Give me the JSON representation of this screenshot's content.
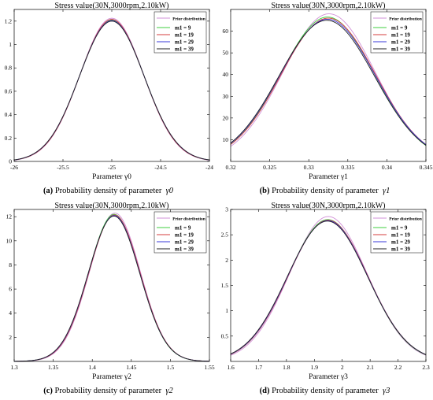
{
  "chart_data": [
    {
      "type": "line",
      "title": "Stress value(30N,3000rpm,2.10kW)",
      "xlabel": "Parameter γ0",
      "caption_label": "(a)",
      "caption_text": "Probability density of parameter",
      "caption_symbol": "γ0",
      "xlim": [
        -26,
        -24
      ],
      "ylim": [
        0,
        1.3
      ],
      "xticks": [
        "-26",
        "-25.5",
        "-25",
        "-24.5",
        "-24"
      ],
      "yticks": [
        "0",
        "0.2",
        "0.4",
        "0.6",
        "0.8",
        "1",
        "1.2"
      ],
      "legend_position": "top-right",
      "series": [
        {
          "name": "Prior distribution",
          "color": "#d291d8",
          "mean": -25.0,
          "peak": 1.225,
          "sd": 0.326
        },
        {
          "name": "m1 = 9",
          "color": "#3fcf3f",
          "mean": -25.0,
          "peak": 1.21,
          "sd": 0.33
        },
        {
          "name": "m1 = 19",
          "color": "#d43c3c",
          "mean": -25.0,
          "peak": 1.215,
          "sd": 0.328
        },
        {
          "name": "m1 = 29",
          "color": "#3a3ad8",
          "mean": -25.0,
          "peak": 1.205,
          "sd": 0.331
        },
        {
          "name": "m1 = 39",
          "color": "#222222",
          "mean": -25.0,
          "peak": 1.2,
          "sd": 0.332
        }
      ]
    },
    {
      "type": "line",
      "title": "Stress value(30N,3000rpm,2.10kW)",
      "xlabel": "Parameter γ1",
      "caption_label": "(b)",
      "caption_text": "Probability density of parameter",
      "caption_symbol": "γ1",
      "xlim": [
        0.32,
        0.345
      ],
      "ylim": [
        0,
        70
      ],
      "xticks": [
        "0.32",
        "0.325",
        "0.33",
        "0.335",
        "0.34",
        "0.345"
      ],
      "yticks": [
        "10",
        "20",
        "30",
        "40",
        "50",
        "60"
      ],
      "legend_position": "top-right",
      "series": [
        {
          "name": "Prior distribution",
          "color": "#d291d8",
          "mean": 0.3326,
          "peak": 68,
          "sd": 0.0059
        },
        {
          "name": "m1 = 9",
          "color": "#3fcf3f",
          "mean": 0.3324,
          "peak": 66.5,
          "sd": 0.006
        },
        {
          "name": "m1 = 19",
          "color": "#d43c3c",
          "mean": 0.3325,
          "peak": 66,
          "sd": 0.00605
        },
        {
          "name": "m1 = 29",
          "color": "#3a3ad8",
          "mean": 0.3324,
          "peak": 65.5,
          "sd": 0.0061
        },
        {
          "name": "m1 = 39",
          "color": "#222222",
          "mean": 0.3323,
          "peak": 65,
          "sd": 0.0061
        }
      ]
    },
    {
      "type": "line",
      "title": "Stress value(30N,3000rpm,2.10kW)",
      "xlabel": "Parameter γ2",
      "caption_label": "(c)",
      "caption_text": "Probability density of parameter",
      "caption_symbol": "γ2",
      "xlim": [
        1.3,
        1.55
      ],
      "ylim": [
        0,
        12.6
      ],
      "xticks": [
        "1.3",
        "1.35",
        "1.4",
        "1.45",
        "1.5",
        "1.55"
      ],
      "yticks": [
        "2",
        "4",
        "6",
        "8",
        "10",
        "12"
      ],
      "legend_position": "top-right",
      "series": [
        {
          "name": "Prior distribution",
          "color": "#d291d8",
          "mean": 1.429,
          "peak": 12.3,
          "sd": 0.0325
        },
        {
          "name": "m1 = 9",
          "color": "#3fcf3f",
          "mean": 1.428,
          "peak": 12.2,
          "sd": 0.0327
        },
        {
          "name": "m1 = 19",
          "color": "#d43c3c",
          "mean": 1.4285,
          "peak": 12.15,
          "sd": 0.0328
        },
        {
          "name": "m1 = 29",
          "color": "#3a3ad8",
          "mean": 1.428,
          "peak": 12.1,
          "sd": 0.0329
        },
        {
          "name": "m1 = 39",
          "color": "#222222",
          "mean": 1.4278,
          "peak": 12.05,
          "sd": 0.033
        }
      ]
    },
    {
      "type": "line",
      "title": "Stress value(30N,3000rpm,2.10kW)",
      "xlabel": "Parameter γ3",
      "caption_label": "(d)",
      "caption_text": "Probability density of parameter",
      "caption_symbol": "γ3",
      "xlim": [
        1.6,
        2.3
      ],
      "ylim": [
        0,
        3
      ],
      "xticks": [
        "1.6",
        "1.7",
        "1.8",
        "1.9",
        "2",
        "2.1",
        "2.2",
        "2.3"
      ],
      "yticks": [
        "0.5",
        "1",
        "1.5",
        "2",
        "2.5",
        "3"
      ],
      "legend_position": "top-right",
      "series": [
        {
          "name": "Prior distribution",
          "color": "#d291d8",
          "mean": 1.95,
          "peak": 2.86,
          "sd": 0.139
        },
        {
          "name": "m1 = 9",
          "color": "#3fcf3f",
          "mean": 1.948,
          "peak": 2.8,
          "sd": 0.142
        },
        {
          "name": "m1 = 19",
          "color": "#d43c3c",
          "mean": 1.949,
          "peak": 2.79,
          "sd": 0.1425
        },
        {
          "name": "m1 = 29",
          "color": "#3a3ad8",
          "mean": 1.948,
          "peak": 2.78,
          "sd": 0.143
        },
        {
          "name": "m1 = 39",
          "color": "#222222",
          "mean": 1.947,
          "peak": 2.77,
          "sd": 0.1435
        }
      ]
    }
  ]
}
